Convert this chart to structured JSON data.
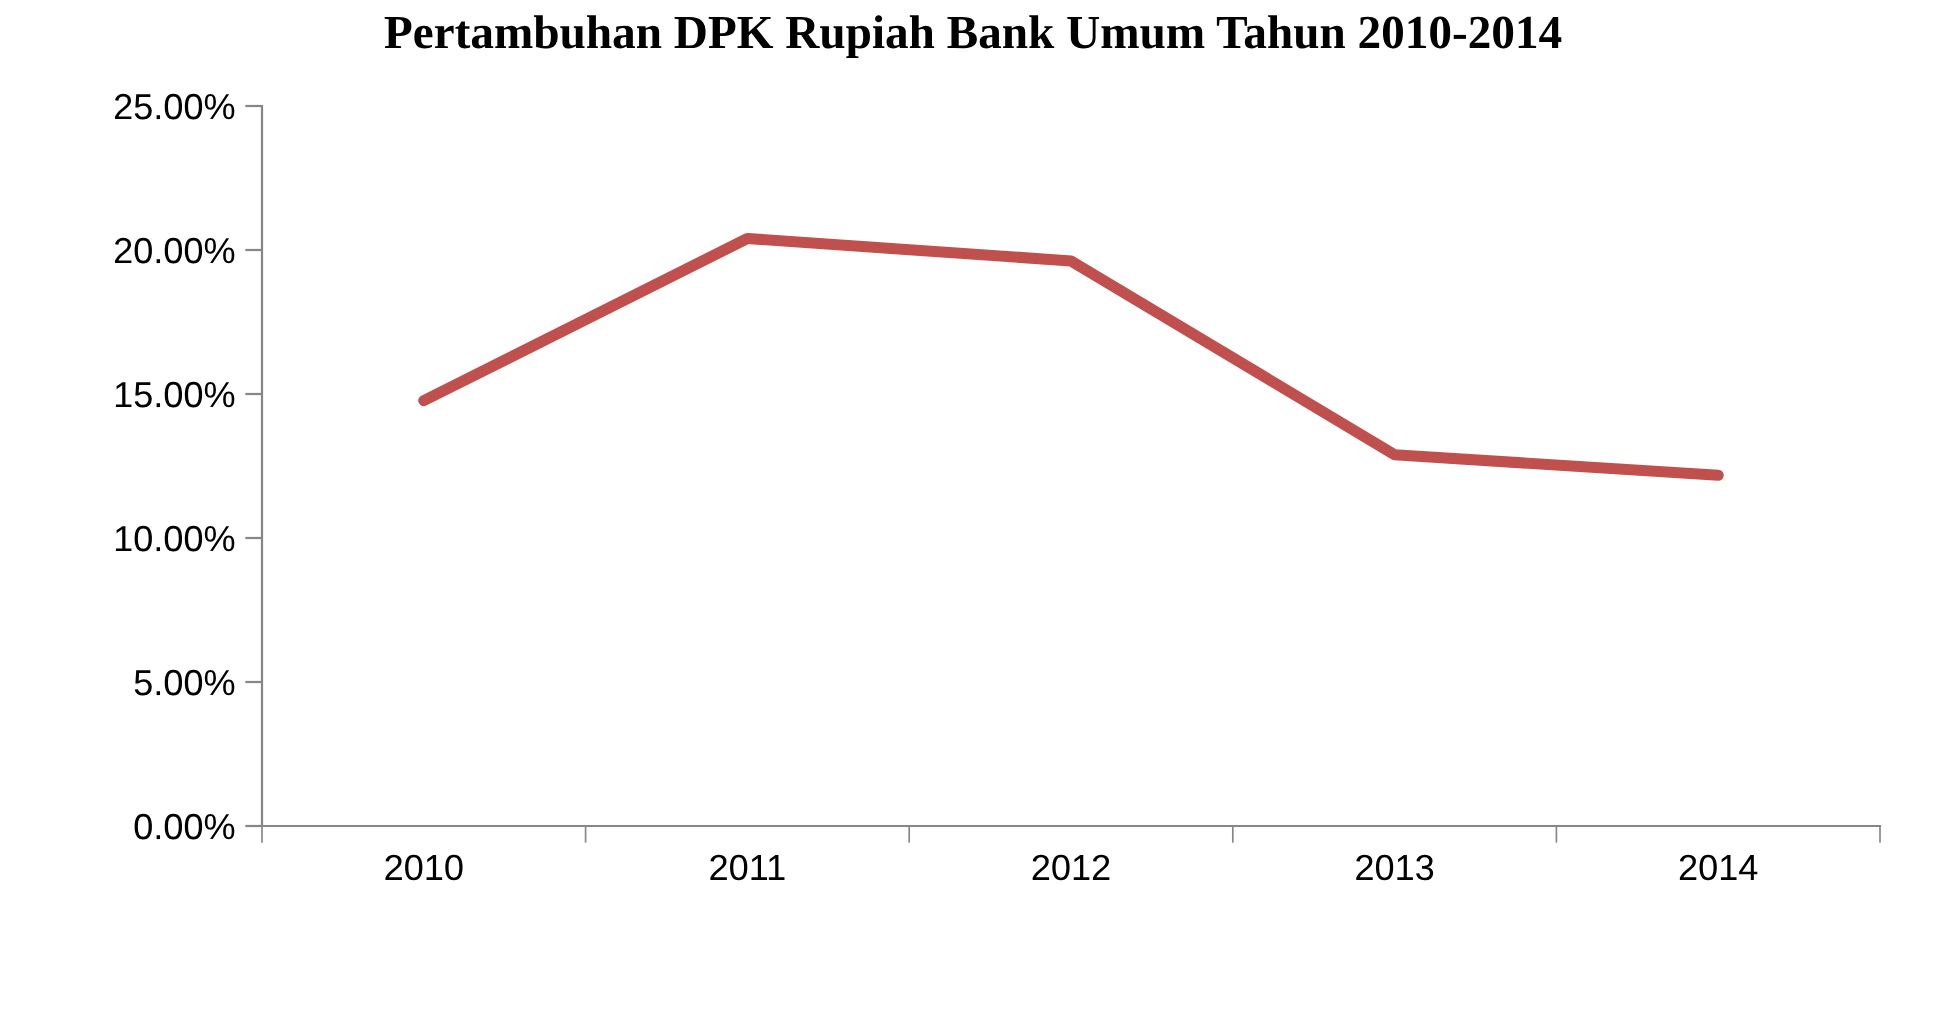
{
  "chart_data": {
    "type": "line",
    "title": "Pertambuhan DPK Rupiah Bank Umum Tahun 2010-2014",
    "categories": [
      "2010",
      "2011",
      "2012",
      "2013",
      "2014"
    ],
    "series": [
      {
        "color": "#c0504d",
        "values": [
          14.77,
          20.4,
          19.62,
          12.89,
          12.18
        ]
      }
    ],
    "ylim": [
      0,
      25
    ],
    "yticks": [
      {
        "value": 0,
        "label": "0.00%"
      },
      {
        "value": 5,
        "label": "5.00%"
      },
      {
        "value": 10,
        "label": "10.00%"
      },
      {
        "value": 15,
        "label": "15.00%"
      },
      {
        "value": 20,
        "label": "20.00%"
      },
      {
        "value": 25,
        "label": "25.00%"
      }
    ],
    "grid": false,
    "legend": false,
    "marker": "none",
    "line_style": "solid"
  }
}
